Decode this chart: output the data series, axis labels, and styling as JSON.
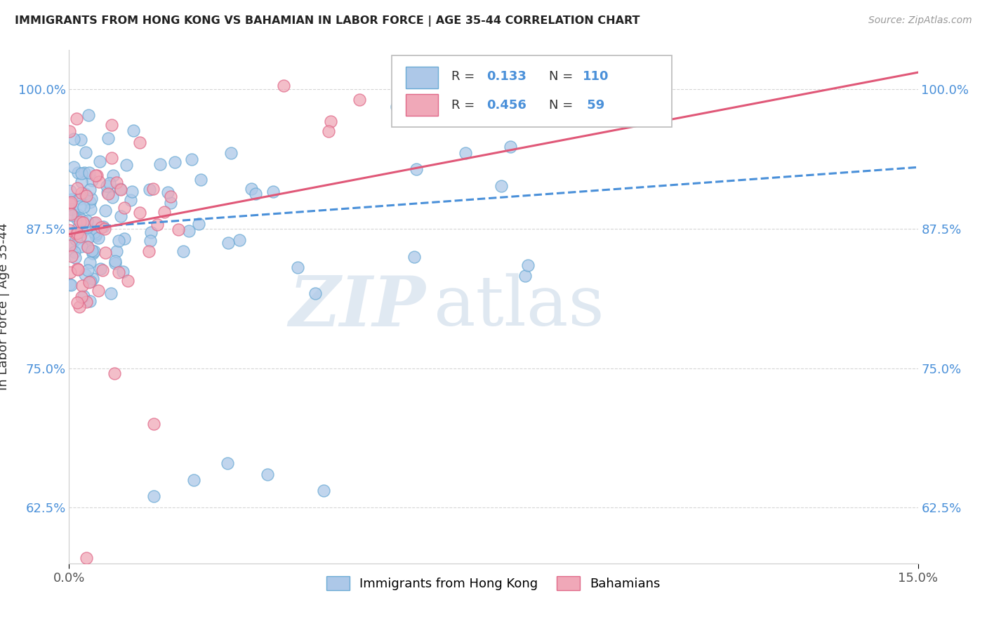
{
  "title": "IMMIGRANTS FROM HONG KONG VS BAHAMIAN IN LABOR FORCE | AGE 35-44 CORRELATION CHART",
  "source": "Source: ZipAtlas.com",
  "ylabel": "In Labor Force | Age 35-44",
  "xlim": [
    0.0,
    15.0
  ],
  "ylim": [
    57.5,
    103.5
  ],
  "yticks": [
    62.5,
    75.0,
    87.5,
    100.0
  ],
  "ytick_labels": [
    "62.5%",
    "75.0%",
    "87.5%",
    "100.0%"
  ],
  "xtick_labels": [
    "0.0%",
    "15.0%"
  ],
  "blue_label": "Immigrants from Hong Kong",
  "pink_label": "Bahamians",
  "blue_R": 0.133,
  "blue_N": 110,
  "pink_R": 0.456,
  "pink_N": 59,
  "watermark_zip": "ZIP",
  "watermark_atlas": "atlas",
  "blue_line_color": "#4a90d9",
  "pink_line_color": "#e05878",
  "scatter_blue_fill": "#adc8e8",
  "scatter_blue_edge": "#6aaad4",
  "scatter_pink_fill": "#f0a8b8",
  "scatter_pink_edge": "#e06888",
  "background_color": "#ffffff",
  "grid_color": "#cccccc",
  "stat_color": "#4a90d9",
  "source_color": "#999999",
  "title_color": "#222222",
  "ylabel_color": "#333333",
  "watermark_zip_color": "#c8d8e8",
  "watermark_atlas_color": "#b8cce0"
}
